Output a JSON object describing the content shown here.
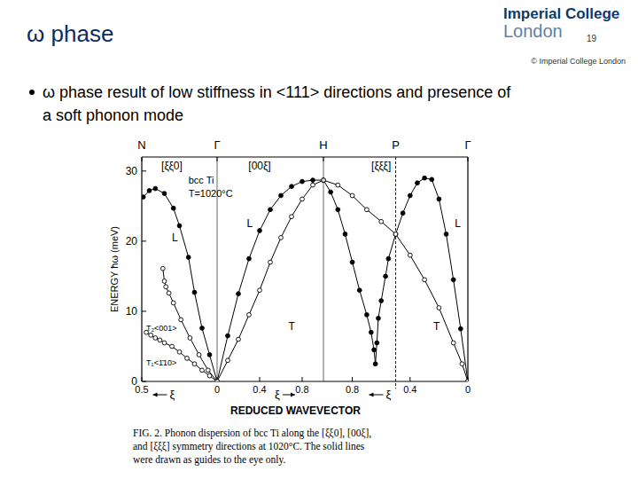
{
  "slide": {
    "title": "ω phase",
    "logo": [
      "Imperial College",
      "London"
    ],
    "page": 19,
    "copyright": "© Imperial College London",
    "bullet": [
      "ω phase result of low stiffness in <111> directions and presence of",
      "a soft phonon mode"
    ]
  },
  "figure": {
    "xlabel": "REDUCED WAVEVECTOR",
    "caption": [
      "FIG. 2.  Phonon dispersion of bcc Ti along the [ξξ0], [00ξ],",
      "and [ξξξ] symmetry directions at 1020°C.  The solid lines",
      "were drawn as guides to the eye only."
    ]
  },
  "chart_data": [
    {
      "type": "line",
      "title": "[ξξ0]",
      "xlabel": "ξ",
      "ylabel": "ENERGY ħω (meV)",
      "xlim": [
        0.5,
        0
      ],
      "ylim": [
        0,
        32
      ],
      "xticks": [
        0.5,
        0
      ],
      "yticks": [
        0,
        10,
        20,
        30
      ],
      "sym_points": [
        {
          "label": "N",
          "x": 0.5
        },
        {
          "label": "Γ",
          "x": 0
        }
      ],
      "annotations": [
        {
          "text": "bcc Ti",
          "x": 0.19,
          "y": 28.2
        },
        {
          "text": "T=1020°C",
          "x": 0.19,
          "y": 26.3
        }
      ],
      "series": [
        {
          "name": "L",
          "marker": "filled",
          "line_style": "solid",
          "name_at": [
            0.3,
            20
          ],
          "x": [
            0.49,
            0.45,
            0.41,
            0.35,
            0.29,
            0.25,
            0.19,
            0.15,
            0.1,
            0.05,
            0
          ],
          "values": [
            26.3,
            27.2,
            27.5,
            26.8,
            24.7,
            22.2,
            17.7,
            12.7,
            7.6,
            3.8,
            0
          ]
        },
        {
          "name": "T₂<001>",
          "marker": "open",
          "line_style": "solid",
          "name_at": [
            0.47,
            7.2
          ],
          "x": [
            0.36,
            0.35,
            0.34,
            0.32,
            0.29,
            0.24,
            0.18,
            0.12,
            0.06,
            0
          ],
          "values": [
            16.1,
            14.3,
            13.5,
            12.6,
            11.2,
            8.8,
            6.2,
            3.8,
            1.6,
            0
          ]
        },
        {
          "name": "T₁<1̄10>",
          "marker": "open",
          "line_style": "solid",
          "name_at": [
            0.47,
            2.3
          ],
          "x": [
            0.47,
            0.44,
            0.41,
            0.38,
            0.35,
            0.3,
            0.25,
            0.2,
            0.15,
            0.1,
            0.05,
            0
          ],
          "values": [
            7.0,
            6.6,
            6.2,
            5.9,
            5.5,
            5.0,
            4.2,
            3.3,
            2.5,
            1.6,
            0.8,
            0
          ]
        }
      ]
    },
    {
      "type": "line",
      "title": "[00ξ]",
      "xlabel": "ξ",
      "tick_labels": "x",
      "xlim": [
        0,
        1
      ],
      "ylim": [
        0,
        32
      ],
      "xticks": [
        0.4,
        0.8
      ],
      "sym_points": [
        {
          "label": "H",
          "x": 1
        }
      ],
      "series": [
        {
          "name": "L",
          "marker": "filled",
          "line_style": "solid",
          "name_at": [
            0.28,
            22
          ],
          "x": [
            0,
            0.1,
            0.2,
            0.3,
            0.4,
            0.5,
            0.6,
            0.7,
            0.8,
            0.9,
            1.0
          ],
          "values": [
            0,
            6.5,
            12.5,
            17.5,
            21.5,
            24.5,
            26.5,
            27.8,
            28.5,
            28.7,
            28.7
          ]
        },
        {
          "name": "T",
          "marker": "open",
          "line_style": "solid",
          "name_at": [
            0.67,
            7.3
          ],
          "x": [
            0,
            0.1,
            0.2,
            0.3,
            0.4,
            0.5,
            0.6,
            0.7,
            0.8,
            0.9,
            1.0
          ],
          "values": [
            0,
            3.0,
            6.0,
            9.5,
            13.0,
            17.0,
            20.5,
            23.5,
            26.0,
            28.0,
            28.7
          ]
        }
      ]
    },
    {
      "type": "line",
      "title": "[ξξξ]",
      "xlabel": "ξ",
      "tick_labels": "x",
      "xlim": [
        1,
        0
      ],
      "ylim": [
        0,
        32
      ],
      "xticks": [
        0.8,
        0.4,
        0
      ],
      "sym_points": [
        {
          "label": "P",
          "x": 0.5
        },
        {
          "label": "Γ",
          "x": 0
        }
      ],
      "series": [
        {
          "name": "L",
          "marker": "filled",
          "line_style": "solid",
          "name_at": [
            0.09,
            22
          ],
          "x": [
            1,
            0.95,
            0.9,
            0.85,
            0.8,
            0.75,
            0.7,
            0.67,
            0.65,
            0.64,
            0.63,
            0.62,
            0.6,
            0.57,
            0.55,
            0.5,
            0.45,
            0.4,
            0.35,
            0.3,
            0.25,
            0.2,
            0.15,
            0.1,
            0.05,
            0
          ],
          "values": [
            28.7,
            27,
            24.5,
            21,
            17,
            13,
            9.5,
            7,
            4.5,
            2.5,
            5.5,
            9,
            11.5,
            15,
            17.5,
            21,
            24,
            26.5,
            28.3,
            29,
            28.8,
            26,
            21,
            14.5,
            7.5,
            0
          ]
        },
        {
          "name": "T",
          "marker": "open",
          "line_style": "solid",
          "name_at": [
            0.24,
            7.3
          ],
          "x": [
            1,
            0.9,
            0.8,
            0.7,
            0.6,
            0.5,
            0.4,
            0.3,
            0.2,
            0.1,
            0.04,
            0
          ],
          "values": [
            28.7,
            28,
            26.5,
            24.5,
            22.8,
            21,
            18,
            14.5,
            10.5,
            5.5,
            2.5,
            0
          ]
        }
      ]
    }
  ]
}
